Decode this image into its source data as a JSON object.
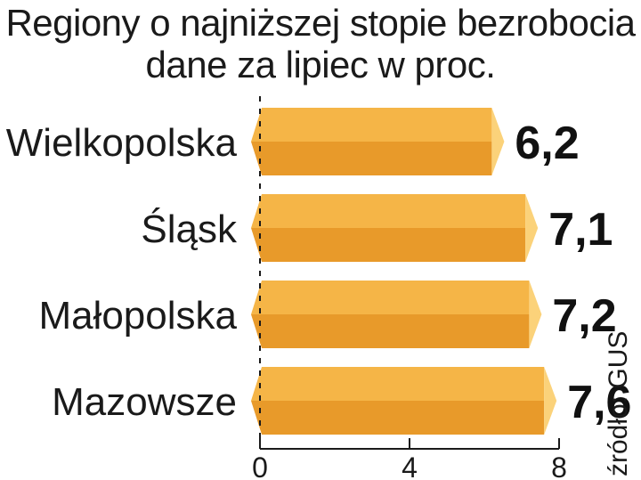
{
  "chart_data": {
    "type": "bar",
    "orientation": "horizontal",
    "title": "Regiony o najniższej stopie bezrobocia",
    "subtitle": "dane za lipiec w proc.",
    "categories": [
      "Wielkopolska",
      "Śląsk",
      "Małopolska",
      "Mazowsze"
    ],
    "values": [
      6.2,
      7.1,
      7.2,
      7.6
    ],
    "value_labels": [
      "6,2",
      "7,1",
      "7,2",
      "7,6"
    ],
    "xlim": [
      0,
      8
    ],
    "xticks": [
      0,
      4,
      8
    ],
    "xtick_labels": [
      "0",
      "4",
      "8"
    ],
    "grid": false,
    "source": "źródło: GUS",
    "colors": {
      "bar_top": "#f5b547",
      "bar_bottom": "#e89a2a",
      "bar_tip": "#fbd27a",
      "text": "#1a1a1a"
    }
  }
}
